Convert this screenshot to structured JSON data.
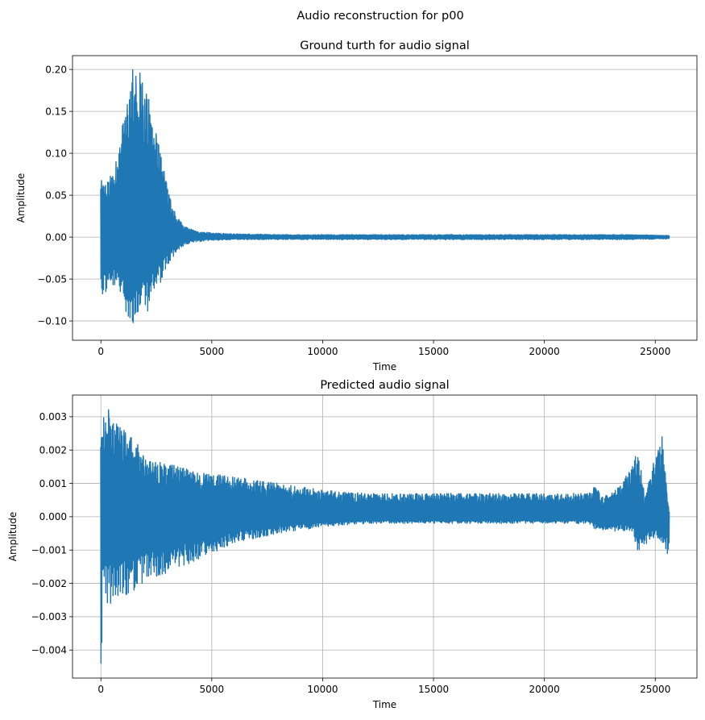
{
  "figure": {
    "suptitle": "Audio reconstruction for p00"
  },
  "chart_data": [
    {
      "type": "line",
      "title": "Ground turth for audio signal",
      "xlabel": "Time",
      "ylabel": "Amplitude",
      "xlim": [
        -1280,
        26880
      ],
      "ylim": [
        -0.123,
        0.2165
      ],
      "xticks": [
        0,
        5000,
        10000,
        15000,
        20000,
        25000
      ],
      "xtick_labels": [
        "0",
        "5000",
        "10000",
        "15000",
        "20000",
        "25000"
      ],
      "yticks": [
        -0.1,
        -0.05,
        0.0,
        0.05,
        0.1,
        0.15,
        0.2
      ],
      "ytick_labels": [
        "−0.10",
        "−0.05",
        "0.00",
        "0.05",
        "0.10",
        "0.15",
        "0.20"
      ],
      "grid": "y",
      "color": "#1f77b4",
      "n_samples": 25600,
      "envelope": {
        "x": [
          0,
          200,
          600,
          1000,
          1400,
          1800,
          2200,
          2600,
          3000,
          3400,
          3800,
          4200,
          5000,
          6000,
          8000,
          12000,
          16000,
          20000,
          24000,
          25600
        ],
        "upper": [
          0.068,
          0.065,
          0.08,
          0.14,
          0.2,
          0.198,
          0.16,
          0.11,
          0.06,
          0.025,
          0.012,
          0.008,
          0.005,
          0.004,
          0.003,
          0.003,
          0.003,
          0.003,
          0.003,
          0.002
        ],
        "lower": [
          -0.072,
          -0.07,
          -0.065,
          -0.08,
          -0.11,
          -0.1,
          -0.085,
          -0.06,
          -0.035,
          -0.018,
          -0.01,
          -0.006,
          -0.004,
          -0.003,
          -0.003,
          -0.003,
          -0.003,
          -0.003,
          -0.003,
          -0.002
        ]
      }
    },
    {
      "type": "line",
      "title": "Predicted audio signal",
      "xlabel": "Time",
      "ylabel": "Amplitude",
      "xlim": [
        -1280,
        26880
      ],
      "ylim": [
        -0.00484,
        0.00365
      ],
      "xticks": [
        0,
        5000,
        10000,
        15000,
        20000,
        25000
      ],
      "xtick_labels": [
        "0",
        "5000",
        "10000",
        "15000",
        "20000",
        "25000"
      ],
      "yticks": [
        -0.004,
        -0.003,
        -0.002,
        -0.001,
        0.0,
        0.001,
        0.002,
        0.003
      ],
      "ytick_labels": [
        "−0.004",
        "−0.003",
        "−0.002",
        "−0.001",
        "0.000",
        "0.001",
        "0.002",
        "0.003"
      ],
      "grid": "both",
      "color": "#1f77b4",
      "n_samples": 25600,
      "envelope": {
        "x": [
          0,
          100,
          300,
          600,
          1000,
          1500,
          2000,
          3000,
          4000,
          5000,
          6000,
          8000,
          10000,
          12000,
          14000,
          16000,
          18000,
          20000,
          22000,
          22300,
          22600,
          23000,
          23500,
          24000,
          24200,
          24500,
          25000,
          25300,
          25600
        ],
        "upper": [
          0.0025,
          0.003,
          0.0033,
          0.0028,
          0.0027,
          0.0024,
          0.0017,
          0.0016,
          0.0014,
          0.0013,
          0.0012,
          0.001,
          0.0008,
          0.0007,
          0.0007,
          0.0007,
          0.0007,
          0.0007,
          0.0007,
          0.001,
          0.0006,
          0.0007,
          0.001,
          0.0016,
          0.0021,
          0.0006,
          0.0018,
          0.0025,
          0.0002
        ],
        "lower": [
          -0.0045,
          -0.002,
          -0.0027,
          -0.0025,
          -0.0024,
          -0.0023,
          -0.0019,
          -0.0017,
          -0.0014,
          -0.0011,
          -0.0008,
          -0.0005,
          -0.0003,
          -0.0002,
          -0.0002,
          -0.0002,
          -0.0002,
          -0.0002,
          -0.0002,
          -0.0004,
          -0.0004,
          -0.0005,
          -0.0004,
          -0.0006,
          -0.0012,
          -0.0009,
          -0.0006,
          -0.0008,
          -0.0012
        ]
      }
    }
  ]
}
